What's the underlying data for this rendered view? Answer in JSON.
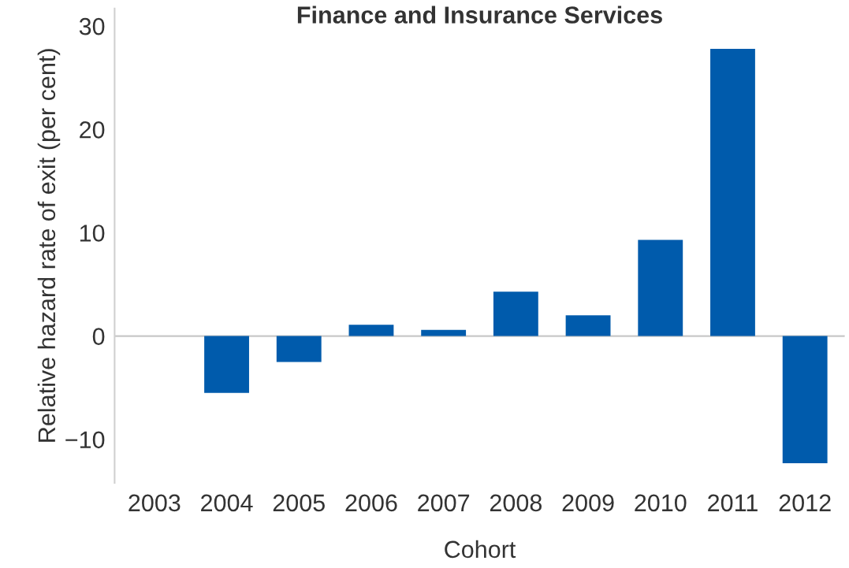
{
  "chart_data": {
    "type": "bar",
    "title": "Finance and Insurance Services",
    "xlabel": "Cohort",
    "ylabel": "Relative hazard rate of exit (per cent)",
    "categories": [
      "2003",
      "2004",
      "2005",
      "2006",
      "2007",
      "2008",
      "2009",
      "2010",
      "2011",
      "2012"
    ],
    "values": [
      null,
      -5.5,
      -2.5,
      1.1,
      0.6,
      4.3,
      2.0,
      9.3,
      27.8,
      -12.3
    ],
    "color": "#005bac",
    "ylim": [
      -14.2,
      31.7
    ],
    "yticks": [
      {
        "value": -10,
        "label": "−10"
      },
      0,
      10,
      20,
      30
    ]
  }
}
